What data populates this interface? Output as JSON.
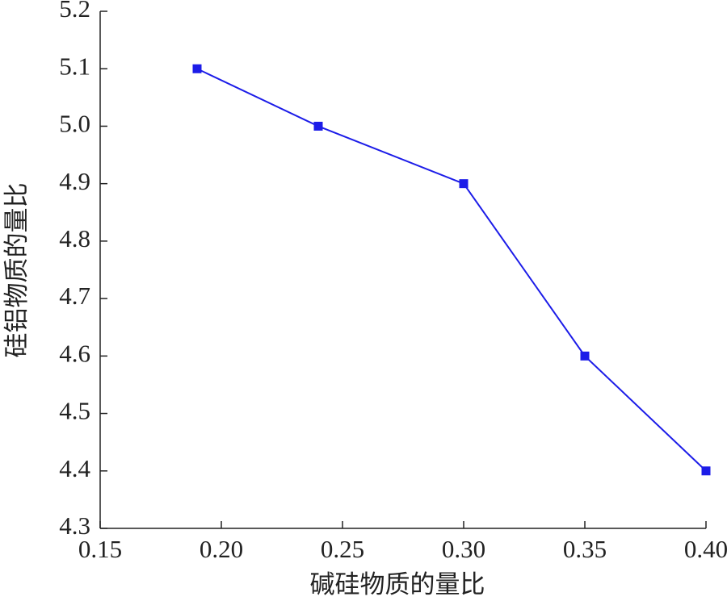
{
  "chart_data": {
    "type": "line",
    "x_label": "碱硅物质的量比",
    "y_label": "硅铝物质的量比",
    "x": [
      0.19,
      0.24,
      0.3,
      0.35,
      0.4
    ],
    "series": [
      {
        "color": "#1c1ce8",
        "values": [
          5.1,
          5.0,
          4.9,
          4.6,
          4.4
        ]
      }
    ],
    "xlim": [
      0.15,
      0.4
    ],
    "xticks": [
      0.15,
      {
        "value": 0.2,
        "label": "0.20"
      },
      0.25,
      {
        "value": 0.3,
        "label": "0.30"
      },
      0.35,
      {
        "value": 0.4,
        "label": "0.40"
      }
    ],
    "ylim": [
      4.3,
      5.2
    ],
    "yticks": [
      4.3,
      4.4,
      4.5,
      4.6,
      4.7,
      4.8,
      4.9,
      {
        "value": 5,
        "label": "5.0"
      },
      5.1,
      5.2
    ],
    "grid": false
  }
}
